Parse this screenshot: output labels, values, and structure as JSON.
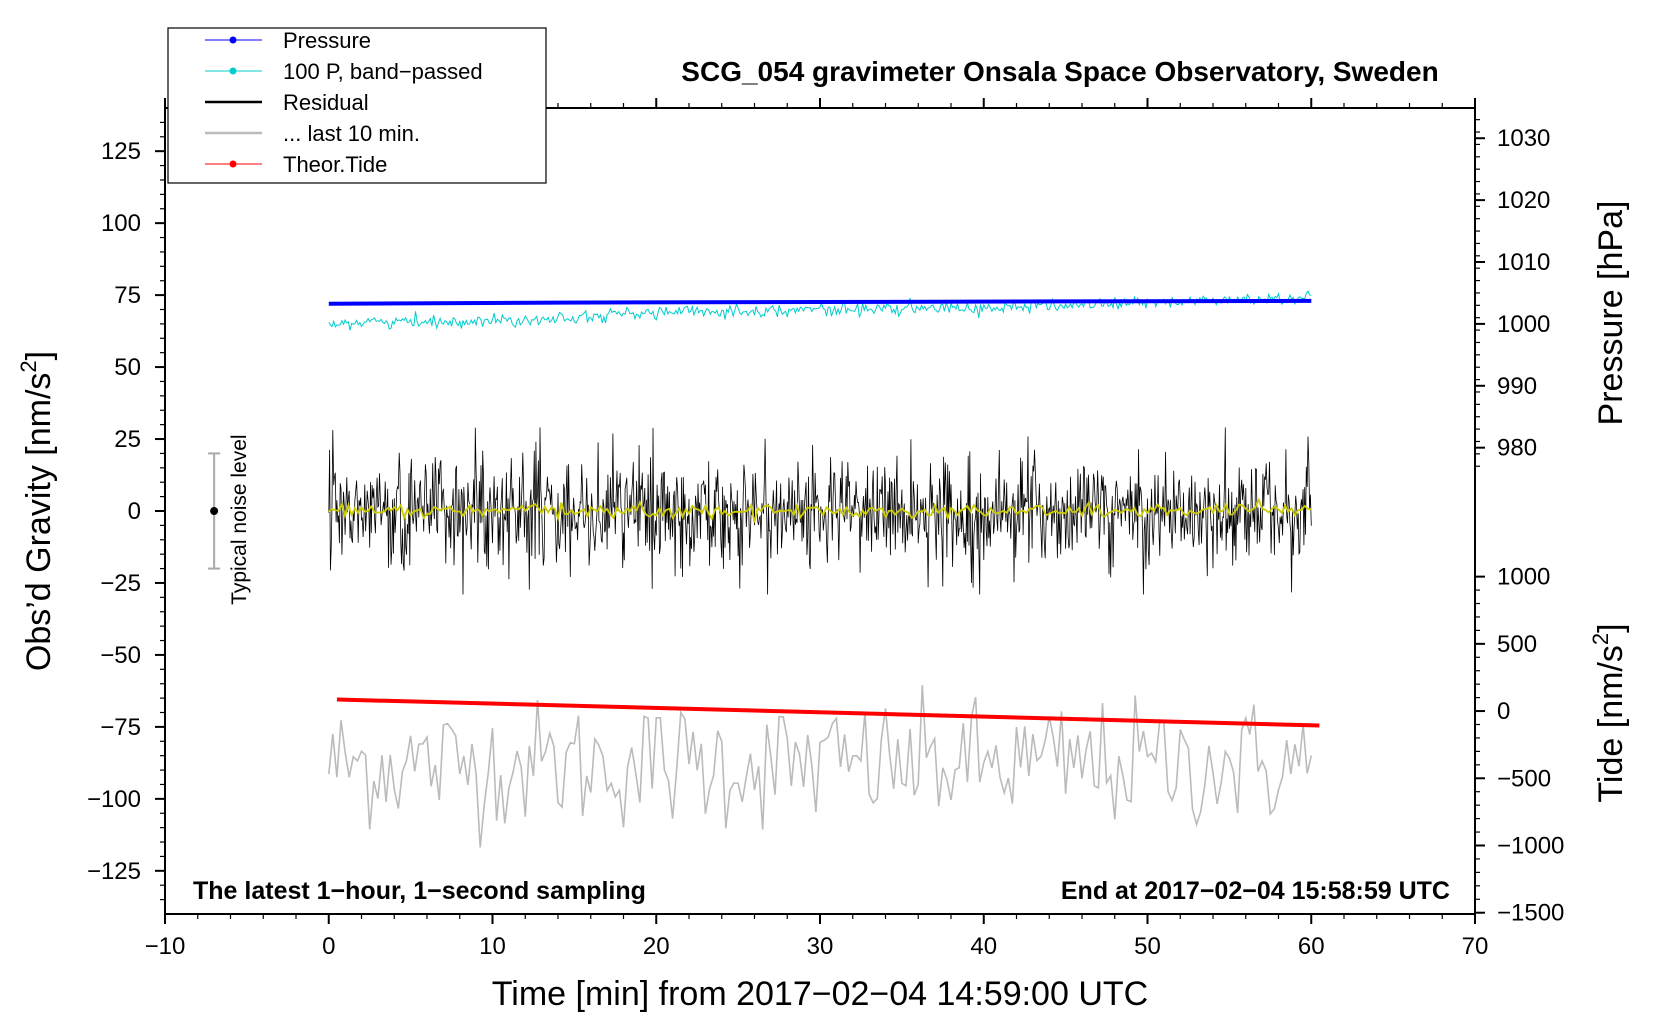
{
  "chart_data": {
    "type": "line",
    "title": "SCG_054 gravimeter Onsala Space Observatory, Sweden",
    "xlabel": "Time [min] from 2017−02−04 14:59:00 UTC",
    "ylabel_left": "Obs’d Gravity [nm/s",
    "ylabel_left_sup": "2",
    "ylabel_left_end": "]",
    "ylabel_right_pressure": "Pressure [hPa]",
    "ylabel_right_tide": "Tide [nm/s",
    "ylabel_right_tide_sup": "2",
    "ylabel_right_tide_end": "]",
    "xlim": [
      -10,
      70
    ],
    "ylim_left": [
      -140,
      140
    ],
    "x_ticks": [
      {
        "v": -10,
        "label": "−10"
      },
      {
        "v": 0,
        "label": "0"
      },
      {
        "v": 10,
        "label": "10"
      },
      {
        "v": 20,
        "label": "20"
      },
      {
        "v": 30,
        "label": "30"
      },
      {
        "v": 40,
        "label": "40"
      },
      {
        "v": 50,
        "label": "50"
      },
      {
        "v": 60,
        "label": "60"
      },
      {
        "v": 70,
        "label": "70"
      }
    ],
    "y_ticks_left": [
      {
        "v": 125,
        "label": "125"
      },
      {
        "v": 100,
        "label": "100"
      },
      {
        "v": 75,
        "label": "75"
      },
      {
        "v": 50,
        "label": "50"
      },
      {
        "v": 25,
        "label": "25"
      },
      {
        "v": 0,
        "label": "0"
      },
      {
        "v": -25,
        "label": "−25"
      },
      {
        "v": -50,
        "label": "−50"
      },
      {
        "v": -75,
        "label": "−75"
      },
      {
        "v": -100,
        "label": "−100"
      },
      {
        "v": -125,
        "label": "−125"
      }
    ],
    "pressure_axis": {
      "ticks": [
        {
          "v": 1030,
          "label": "1030"
        },
        {
          "v": 1020,
          "label": "1020"
        },
        {
          "v": 1010,
          "label": "1010"
        },
        {
          "v": 1000,
          "label": "1000"
        },
        {
          "v": 990,
          "label": "990"
        },
        {
          "v": 980,
          "label": "980"
        }
      ],
      "map_left_value_at_1000": 65,
      "left_units_per_hpa": 2.15
    },
    "tide_axis": {
      "ticks": [
        {
          "v": 1000,
          "label": "1000"
        },
        {
          "v": 500,
          "label": "500"
        },
        {
          "v": 0,
          "label": "0"
        },
        {
          "v": -500,
          "label": "−500"
        },
        {
          "v": -1000,
          "label": "−1000"
        },
        {
          "v": -1500,
          "label": "−1500"
        }
      ],
      "map_left_value_at_0": -69.5,
      "left_units_per_nms2": 0.0467
    },
    "series": [
      {
        "name": "Pressure",
        "color": "#0000ff",
        "x": [
          0,
          14,
          30,
          45,
          60
        ],
        "values": [
          72.0,
          72.4,
          72.6,
          72.8,
          73.0
        ]
      },
      {
        "name": "100 P, band−passed",
        "color": "#00cccc",
        "x": [
          0,
          10,
          20,
          30,
          40,
          50,
          60
        ],
        "values": [
          65.5,
          66.0,
          69.0,
          70.0,
          70.5,
          72.5,
          74.0
        ],
        "noise": 1.8
      },
      {
        "name": "Residual",
        "color": "#000000",
        "x": [
          0,
          60
        ],
        "values": [
          0,
          0
        ],
        "noise": 9
      },
      {
        "name": "Residual mean",
        "color": "#cccc00",
        "x": [
          0,
          60
        ],
        "values": [
          0,
          0
        ],
        "noise": 1.2
      },
      {
        "name": "... last 10 min.",
        "color": "#bbbbbb",
        "x": [
          0,
          60
        ],
        "values": [
          -88,
          -88
        ],
        "noise": 11
      },
      {
        "name": "Theor.Tide",
        "color": "#ff0000",
        "x": [
          0.5,
          60.5
        ],
        "values": [
          -65.5,
          -74.5
        ]
      }
    ],
    "noise_bar": {
      "x": -7,
      "center": 0,
      "low": -20,
      "high": 20,
      "label": "Typical noise level"
    },
    "annotations": {
      "bottom_left": "The latest 1−hour, 1−second sampling",
      "bottom_right": "End at 2017−02−04 15:58:59 UTC"
    },
    "legend": [
      {
        "label": "Pressure",
        "color": "#0000ff",
        "marker": true,
        "thick": false
      },
      {
        "label": "100 P, band−passed",
        "color": "#00cccc",
        "marker": true,
        "thick": false
      },
      {
        "label": "Residual",
        "color": "#000000",
        "marker": false,
        "thick": true
      },
      {
        "label": "... last 10 min.",
        "color": "#bbbbbb",
        "marker": false,
        "thick": true
      },
      {
        "label": "Theor.Tide",
        "color": "#ff0000",
        "marker": true,
        "thick": false
      }
    ]
  }
}
